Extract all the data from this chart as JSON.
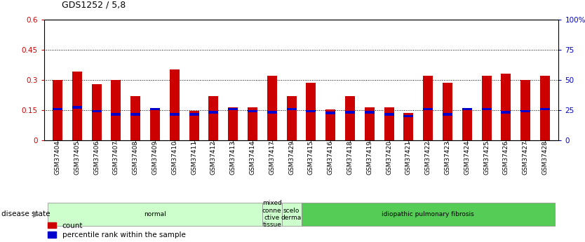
{
  "title": "GDS1252 / 5,8",
  "samples": [
    "GSM37404",
    "GSM37405",
    "GSM37406",
    "GSM37407",
    "GSM37408",
    "GSM37409",
    "GSM37410",
    "GSM37411",
    "GSM37412",
    "GSM37413",
    "GSM37414",
    "GSM37417",
    "GSM37429",
    "GSM37415",
    "GSM37416",
    "GSM37418",
    "GSM37419",
    "GSM37420",
    "GSM37421",
    "GSM37422",
    "GSM37423",
    "GSM37424",
    "GSM37425",
    "GSM37426",
    "GSM37427",
    "GSM37428"
  ],
  "count_values": [
    0.3,
    0.34,
    0.28,
    0.3,
    0.22,
    0.16,
    0.35,
    0.145,
    0.22,
    0.165,
    0.165,
    0.32,
    0.22,
    0.285,
    0.155,
    0.22,
    0.165,
    0.165,
    0.135,
    0.32,
    0.285,
    0.155,
    0.32,
    0.33,
    0.3,
    0.32
  ],
  "percentile_values": [
    0.155,
    0.165,
    0.145,
    0.13,
    0.13,
    0.155,
    0.13,
    0.13,
    0.14,
    0.155,
    0.145,
    0.14,
    0.155,
    0.145,
    0.135,
    0.14,
    0.14,
    0.13,
    0.12,
    0.155,
    0.13,
    0.155,
    0.155,
    0.14,
    0.145,
    0.155
  ],
  "bar_color": "#cc0000",
  "percentile_color": "#0000cc",
  "bg_color": "#ffffff",
  "ylim": [
    0,
    0.6
  ],
  "yticks_left": [
    0,
    0.15,
    0.3,
    0.45,
    0.6
  ],
  "yticks_right": [
    0,
    25,
    50,
    75,
    100
  ],
  "grid_color": "#000000",
  "ylabel_left_color": "#cc0000",
  "ylabel_right_color": "#0000cc",
  "disease_groups": [
    {
      "label": "normal",
      "start": 0,
      "end": 11,
      "color": "#ccffcc",
      "text_color": "#000000"
    },
    {
      "label": "mixed\nconne\nctive\ntissue",
      "start": 11,
      "end": 12,
      "color": "#ccffcc",
      "text_color": "#000000"
    },
    {
      "label": "scelo\nderma",
      "start": 12,
      "end": 13,
      "color": "#ccffcc",
      "text_color": "#000000"
    },
    {
      "label": "idiopathic pulmonary fibrosis",
      "start": 13,
      "end": 26,
      "color": "#55cc55",
      "text_color": "#000000"
    }
  ],
  "disease_state_label": "disease state",
  "legend_count_label": "count",
  "legend_percentile_label": "percentile rank within the sample",
  "bar_width": 0.5
}
